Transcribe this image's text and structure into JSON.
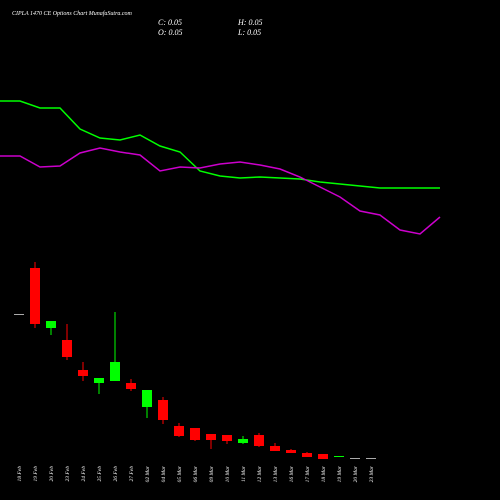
{
  "chart_data": {
    "type": "candlestick",
    "title": "CIPLA 1470 CE Options Chart MunafaSutra.com",
    "ohlc_labels": [
      "C: 0.05",
      "H: 0.05",
      "O: 0.05",
      "L: 0.05"
    ],
    "categories": [
      "18 Feb",
      "19 Feb",
      "20 Feb",
      "23 Feb",
      "24 Feb",
      "25 Feb",
      "26 Feb",
      "27 Feb",
      "02 Mar",
      "04 Mar",
      "05 Mar",
      "06 Mar",
      "09 Mar",
      "10 Mar",
      "11 Mar",
      "12 Mar",
      "13 Mar",
      "16 Mar",
      "17 Mar",
      "18 Mar",
      "19 Mar",
      "20 Mar",
      "23 Mar"
    ],
    "open": [
      146,
      192,
      132,
      120,
      90,
      77,
      79,
      77,
      53,
      60,
      34,
      32,
      26,
      25,
      17,
      25,
      14,
      10,
      7,
      6,
      3,
      2,
      2
    ],
    "high": [
      146,
      198,
      139,
      136,
      98,
      82,
      148,
      81,
      70,
      63,
      37,
      32,
      26,
      25,
      24,
      27,
      17,
      11,
      8,
      6,
      4,
      2,
      2
    ],
    "low": [
      146,
      132,
      125,
      100,
      79,
      66,
      79,
      69,
      42,
      36,
      23,
      19,
      11,
      16,
      16,
      13,
      9,
      7,
      3,
      1,
      3,
      2,
      2
    ],
    "close": [
      146,
      136,
      139,
      103,
      84,
      82,
      98,
      71,
      70,
      40,
      24,
      20,
      20,
      19,
      21,
      14,
      9,
      7,
      3,
      1,
      4,
      2,
      2
    ],
    "up_color": "#00ff00",
    "down_color": "#ff0000",
    "flat_color": "#aaaaaa",
    "series": [
      {
        "color": "#00ff00",
        "values": [
          359,
          359,
          352,
          352,
          331,
          322,
          320,
          325,
          314,
          308,
          289,
          284,
          282,
          283,
          282,
          281,
          278,
          276,
          274,
          272,
          272,
          272,
          272
        ]
      },
      {
        "color": "#cc00cc",
        "values": [
          304,
          304,
          293,
          294,
          307,
          312,
          308,
          305,
          289,
          293,
          292,
          296,
          298,
          295,
          291,
          283,
          273,
          263,
          249,
          245,
          230,
          226,
          243
        ]
      }
    ],
    "ylim": [
      0,
      460
    ]
  }
}
